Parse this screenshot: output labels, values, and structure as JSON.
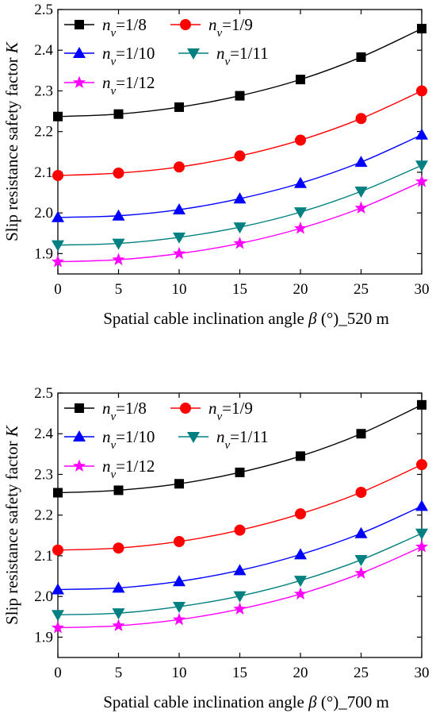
{
  "chart_data": [
    {
      "type": "line",
      "x": [
        0,
        5,
        10,
        15,
        20,
        25,
        30
      ],
      "xlabel": "Spatial cable inclination angle",
      "xlabel_symbol": "β",
      "xlabel_suffix": "(°)_520 m",
      "ylabel": "Slip resistance safety factor",
      "ylabel_symbol": "K",
      "xlim": [
        0,
        30
      ],
      "ylim": [
        1.85,
        2.5
      ],
      "xticks": [
        "0",
        "5",
        "10",
        "15",
        "20",
        "25",
        "30"
      ],
      "yticks": [
        "1.9",
        "2.0",
        "2.1",
        "2.2",
        "2.3",
        "2.4",
        "2.5"
      ],
      "legend_placement": "top-left",
      "series": [
        {
          "name": "1/8",
          "color": "#000000",
          "marker": "square",
          "values": [
            2.237,
            2.243,
            2.26,
            2.288,
            2.328,
            2.383,
            2.453
          ]
        },
        {
          "name": "1/9",
          "color": "#ff0000",
          "marker": "circle",
          "values": [
            2.092,
            2.098,
            2.113,
            2.14,
            2.179,
            2.232,
            2.3
          ]
        },
        {
          "name": "1/10",
          "color": "#0000ff",
          "marker": "triangle-up",
          "values": [
            1.989,
            1.993,
            2.008,
            2.035,
            2.073,
            2.125,
            2.192
          ]
        },
        {
          "name": "1/11",
          "color": "#008080",
          "marker": "triangle-down",
          "values": [
            1.921,
            1.925,
            1.94,
            1.965,
            2.002,
            2.053,
            2.117
          ]
        },
        {
          "name": "1/12",
          "color": "#ff00ff",
          "marker": "star",
          "values": [
            1.88,
            1.885,
            1.9,
            1.925,
            1.962,
            2.012,
            2.077
          ]
        }
      ]
    },
    {
      "type": "line",
      "x": [
        0,
        5,
        10,
        15,
        20,
        25,
        30
      ],
      "xlabel": "Spatial cable inclination angle",
      "xlabel_symbol": "β",
      "xlabel_suffix": "(°)_700 m",
      "ylabel": "Slip resistance safety factor",
      "ylabel_symbol": "K",
      "xlim": [
        0,
        30
      ],
      "ylim": [
        1.85,
        2.5
      ],
      "xticks": [
        "0",
        "5",
        "10",
        "15",
        "20",
        "25",
        "30"
      ],
      "yticks": [
        "1.9",
        "2.0",
        "2.1",
        "2.2",
        "2.3",
        "2.4",
        "2.5"
      ],
      "legend_placement": "top-left",
      "series": [
        {
          "name": "1/8",
          "color": "#000000",
          "marker": "square",
          "values": [
            2.255,
            2.261,
            2.277,
            2.305,
            2.345,
            2.4,
            2.471
          ]
        },
        {
          "name": "1/9",
          "color": "#ff0000",
          "marker": "circle",
          "values": [
            2.114,
            2.119,
            2.135,
            2.163,
            2.203,
            2.256,
            2.324
          ]
        },
        {
          "name": "1/10",
          "color": "#0000ff",
          "marker": "triangle-up",
          "values": [
            2.017,
            2.021,
            2.037,
            2.064,
            2.103,
            2.155,
            2.222
          ]
        },
        {
          "name": "1/11",
          "color": "#008080",
          "marker": "triangle-down",
          "values": [
            1.955,
            1.959,
            1.975,
            2.001,
            2.039,
            2.09,
            2.155
          ]
        },
        {
          "name": "1/12",
          "color": "#ff00ff",
          "marker": "star",
          "values": [
            1.923,
            1.928,
            1.943,
            1.969,
            2.006,
            2.057,
            2.122
          ]
        }
      ]
    }
  ],
  "legend_prefix": "n",
  "legend_subscript": "v"
}
